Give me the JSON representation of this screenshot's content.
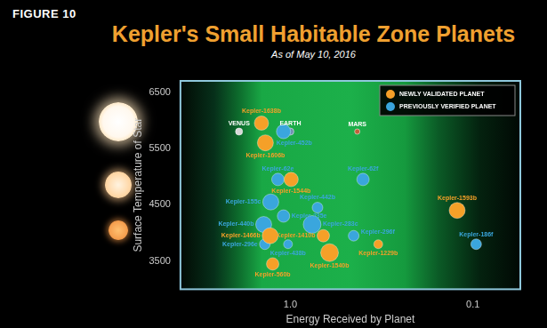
{
  "chart_data": {
    "type": "bubble",
    "title": "Kepler's Small Habitable Zone Planets",
    "subtitle": "As of May 10, 2016",
    "annotations": [
      "FIGURE 10"
    ],
    "x_label": "Energy Received by Planet",
    "y_label": "Surface Temperature of Star",
    "log": "x",
    "xlim": [
      4,
      0.055
    ],
    "xticks": [
      {
        "value": 1,
        "label": "1.0"
      },
      0.1
    ],
    "ylim": [
      3000,
      6700
    ],
    "yticks": [
      3500,
      4500,
      5500,
      6500
    ],
    "grid": false,
    "legend": "upper right",
    "series": [
      {
        "name": "NEWLY VALIDATED PLANET",
        "color": "#f5a028",
        "labels": [
          "Kepler-1638b",
          "Kepler-1606b",
          "Kepler-1544b",
          "Kepler-1593b",
          "Kepler-1466b",
          "Kepler-1410b",
          "Kepler-1540b",
          "Kepler-1229b",
          "Kepler-560b"
        ],
        "x": [
          1.44,
          1.37,
          0.99,
          0.122,
          1.29,
          0.66,
          0.61,
          0.33,
          1.25
        ],
        "values": [
          5950,
          5600,
          4950,
          4400,
          3950,
          3950,
          3650,
          3800,
          3450
        ],
        "sizes": [
          8,
          9,
          8,
          9,
          9,
          7,
          10,
          5,
          7
        ]
      },
      {
        "name": "PREVIOUSLY VERIFIED PLANET",
        "color": "#3aa6dd",
        "labels": [
          "Kepler-452b",
          "Kepler-62e",
          "Kepler-62f",
          "Kepler-155c",
          "Kepler-235e",
          "Kepler-442b",
          "Kepler-440b",
          "Kepler-283c",
          "Kepler-296e",
          "Kepler-438b",
          "Kepler-296f",
          "Kepler-186f"
        ],
        "x": [
          1.09,
          1.17,
          0.4,
          1.28,
          1.09,
          0.71,
          1.4,
          0.76,
          1.38,
          1.03,
          0.45,
          0.096
        ],
        "values": [
          5800,
          4950,
          4950,
          4550,
          4300,
          4450,
          4150,
          4150,
          3800,
          3800,
          3950,
          3800
        ],
        "sizes": [
          8,
          7,
          7,
          9,
          7,
          6,
          9,
          10,
          6,
          5,
          6,
          6
        ]
      }
    ],
    "reference_planets": {
      "labels": [
        "VENUS",
        "EARTH",
        "MARS"
      ],
      "colors": [
        "#d8d8d8",
        "#6f8fb0",
        "#c0603a"
      ],
      "x": [
        1.91,
        1.0,
        0.43
      ],
      "values": [
        5800,
        5800,
        5800
      ],
      "sizes": [
        4,
        4,
        3
      ]
    }
  }
}
